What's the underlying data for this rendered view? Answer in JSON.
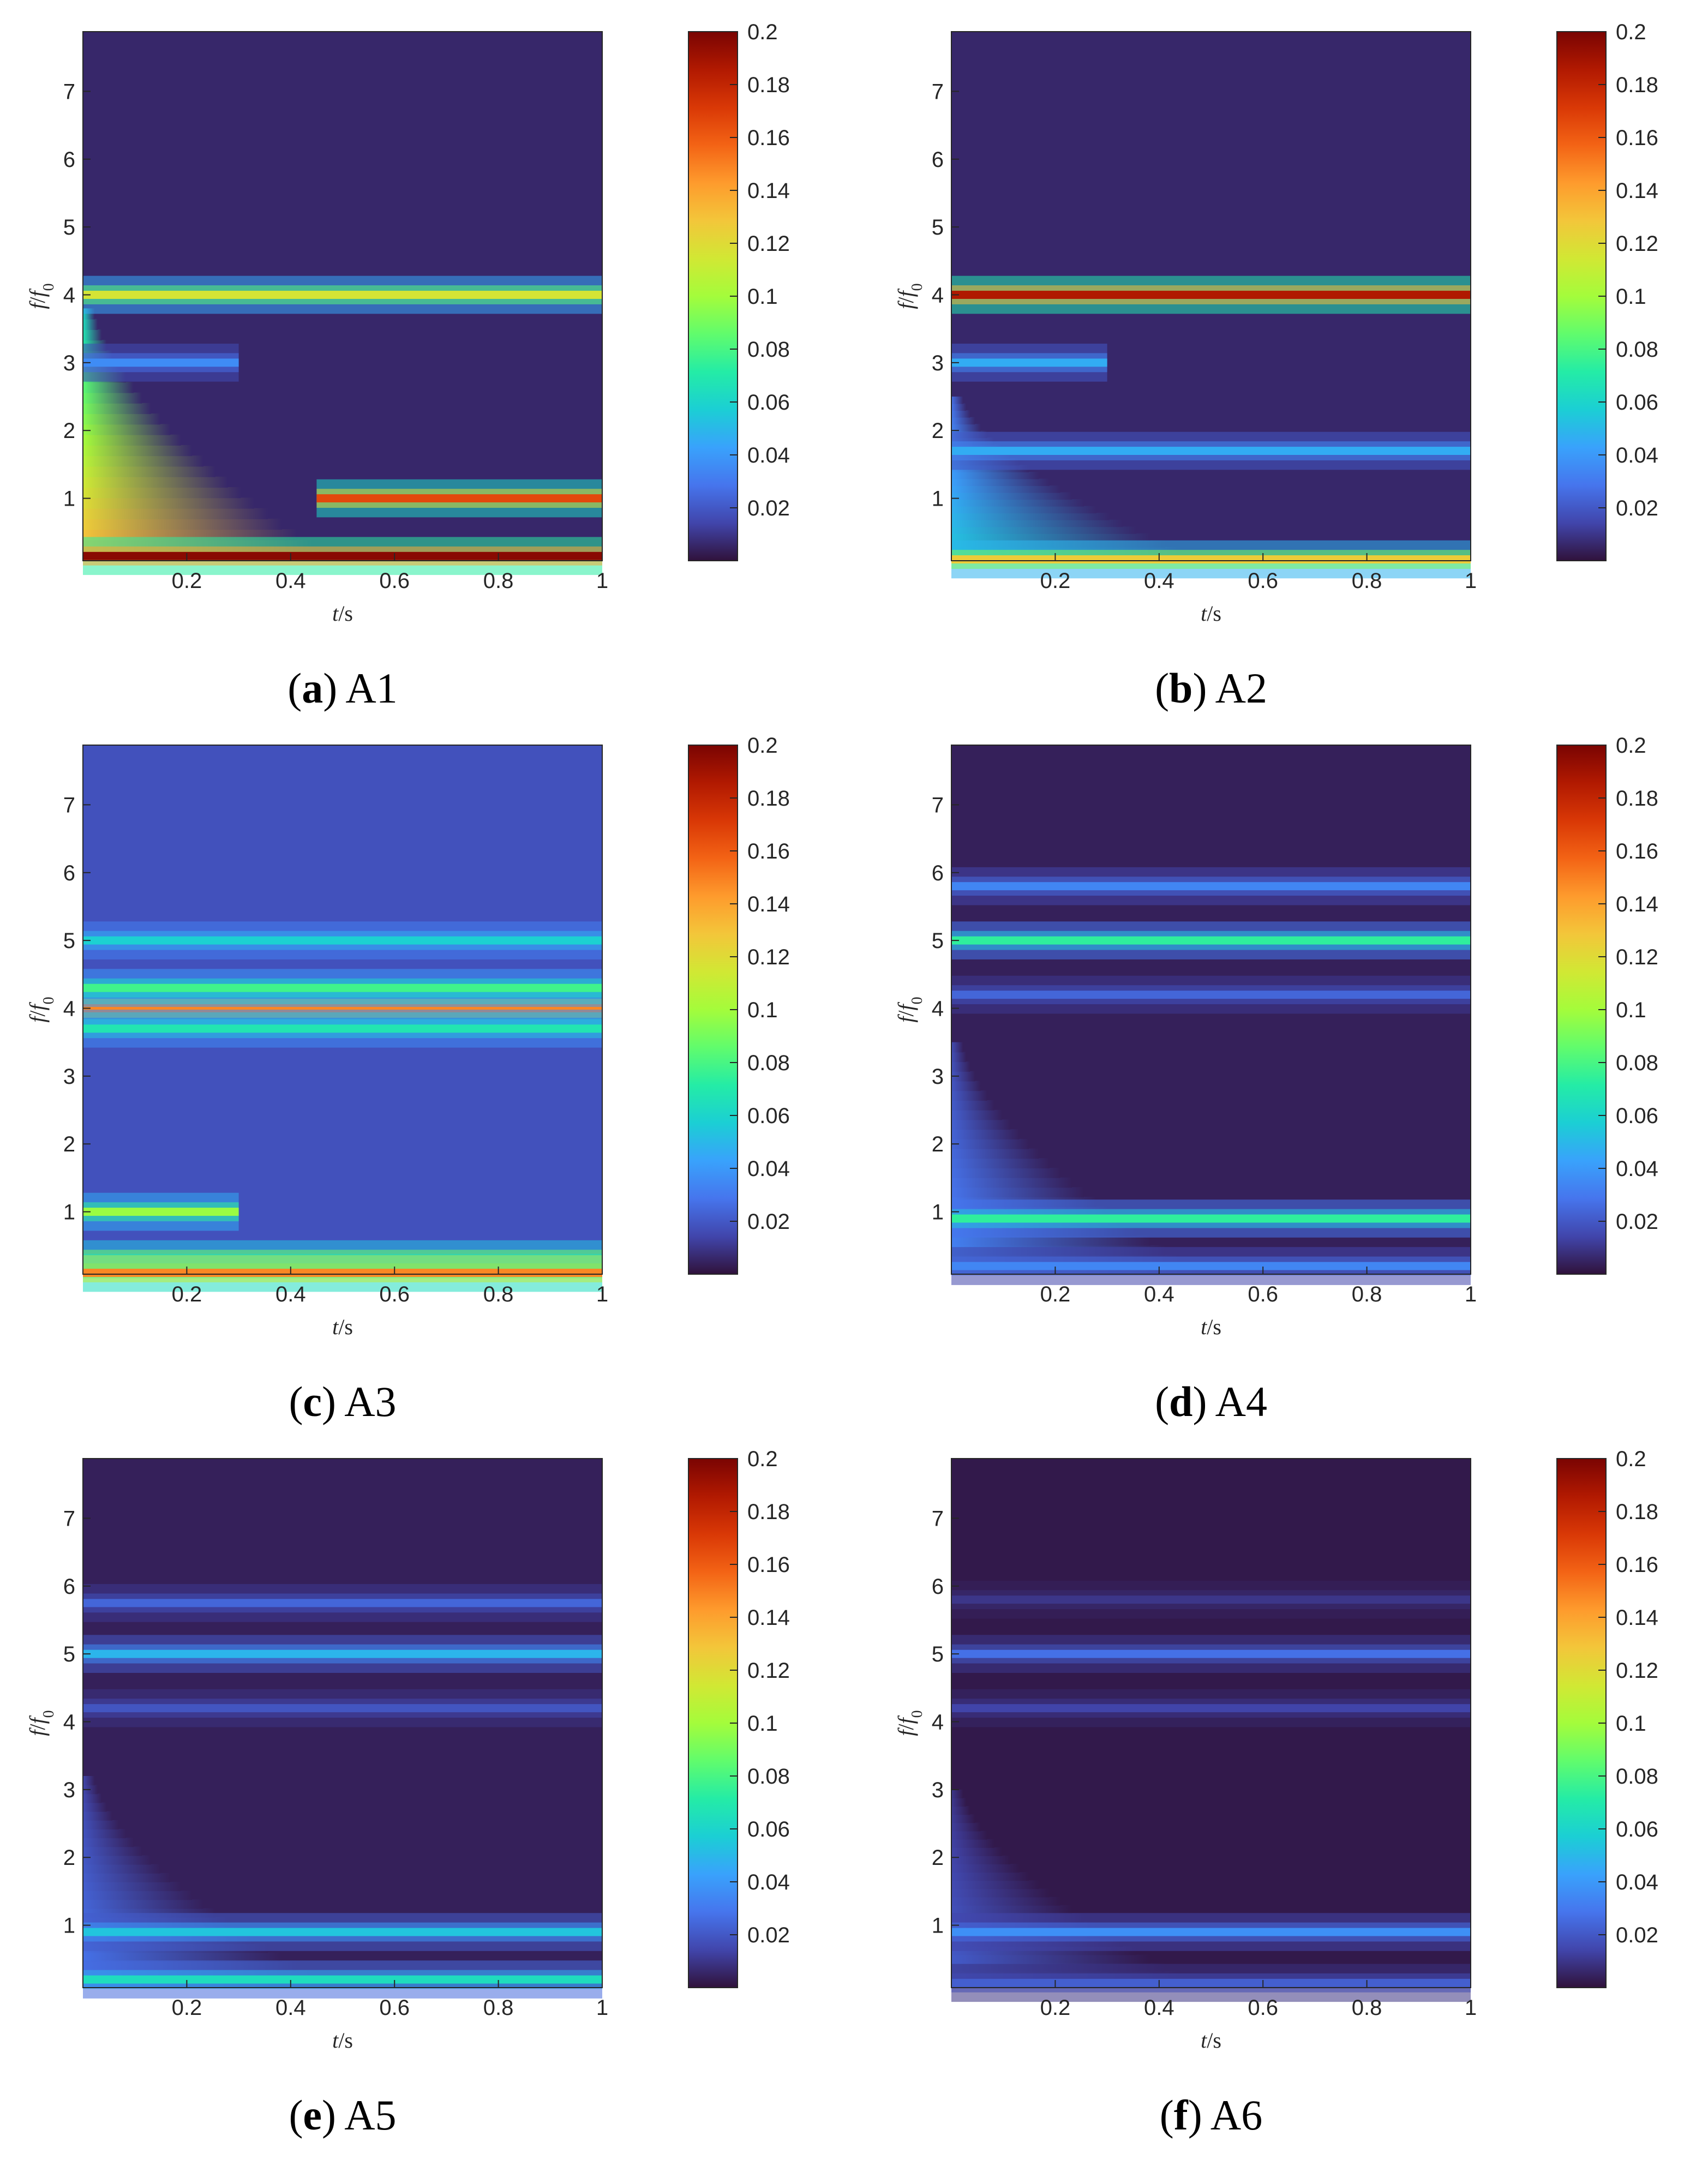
{
  "colors": {
    "colormap": [
      "#30123b",
      "#4145ab",
      "#4675ed",
      "#39a2fc",
      "#1bcfd4",
      "#24eca6",
      "#61fc6c",
      "#a4fc3b",
      "#d1e834",
      "#f3c63a",
      "#fe9b2d",
      "#f36315",
      "#d93806",
      "#b11901",
      "#7a0402"
    ],
    "background": "#2c1a55"
  },
  "chart_data": [
    {
      "type": "heatmap",
      "id": "A1",
      "caption": {
        "label": "a",
        "name": "A1"
      },
      "xlabel": {
        "main": "t",
        "unit": "/s"
      },
      "ylabel": {
        "num": "f",
        "den": "f",
        "den_sub": "0"
      },
      "xlim": [
        0,
        1
      ],
      "ylim": [
        0.08,
        7.88
      ],
      "xticks": [
        0.2,
        0.4,
        0.6,
        0.8,
        1
      ],
      "xtick_labels": [
        "0.2",
        "0.4",
        "0.6",
        "0.8",
        "1"
      ],
      "yticks": [
        1,
        2,
        3,
        4,
        5,
        6,
        7
      ],
      "ytick_labels": [
        "1",
        "2",
        "3",
        "4",
        "5",
        "6",
        "7"
      ],
      "clim": [
        0,
        0.2
      ],
      "cticks": [
        0.02,
        0.04,
        0.06,
        0.08,
        0.1,
        0.12,
        0.14,
        0.16,
        0.18,
        0.2
      ],
      "ctick_labels": [
        "0.02",
        "0.04",
        "0.06",
        "0.08",
        "0.1",
        "0.12",
        "0.14",
        "0.16",
        "0.18",
        "0.2"
      ],
      "background_value": 0.006,
      "bands": [
        {
          "f": 4.0,
          "amplitude": 0.11,
          "t_start": 0,
          "t_end": 1
        },
        {
          "f": 1.0,
          "amplitude": 0.16,
          "t_start": 0.45,
          "t_end": 1
        },
        {
          "f": 3.0,
          "amplitude": 0.03,
          "t_start": 0,
          "t_end": 0.3
        },
        {
          "f": 0.15,
          "amplitude": 0.19,
          "t_start": 0,
          "t_end": 1
        }
      ],
      "transient": {
        "amplitude": 0.13,
        "f_max": 3.8
      }
    },
    {
      "type": "heatmap",
      "id": "A2",
      "caption": {
        "label": "b",
        "name": "A2"
      },
      "xlabel": {
        "main": "t",
        "unit": "/s"
      },
      "ylabel": {
        "num": "f",
        "den": "f",
        "den_sub": "0"
      },
      "xlim": [
        0,
        1
      ],
      "ylim": [
        0.08,
        7.88
      ],
      "xticks": [
        0.2,
        0.4,
        0.6,
        0.8,
        1
      ],
      "xtick_labels": [
        "0.2",
        "0.4",
        "0.6",
        "0.8",
        "1"
      ],
      "yticks": [
        1,
        2,
        3,
        4,
        5,
        6,
        7
      ],
      "ytick_labels": [
        "1",
        "2",
        "3",
        "4",
        "5",
        "6",
        "7"
      ],
      "clim": [
        0,
        0.2
      ],
      "cticks": [
        0.02,
        0.04,
        0.06,
        0.08,
        0.1,
        0.12,
        0.14,
        0.16,
        0.18,
        0.2
      ],
      "ctick_labels": [
        "0.02",
        "0.04",
        "0.06",
        "0.08",
        "0.1",
        "0.12",
        "0.14",
        "0.16",
        "0.18",
        "0.2"
      ],
      "background_value": 0.006,
      "bands": [
        {
          "f": 4.0,
          "amplitude": 0.18,
          "t_start": 0,
          "t_end": 1
        },
        {
          "f": 3.0,
          "amplitude": 0.04,
          "t_start": 0,
          "t_end": 0.3
        },
        {
          "f": 1.7,
          "amplitude": 0.04,
          "t_start": 0,
          "t_end": 1
        },
        {
          "f": 0.1,
          "amplitude": 0.12,
          "t_start": 0,
          "t_end": 1
        }
      ],
      "transient": {
        "amplitude": 0.05,
        "f_max": 2.5
      }
    },
    {
      "type": "heatmap",
      "id": "A3",
      "caption": {
        "label": "c",
        "name": "A3"
      },
      "xlabel": {
        "main": "t",
        "unit": "/s"
      },
      "ylabel": {
        "num": "f",
        "den": "f",
        "den_sub": "0"
      },
      "xlim": [
        0,
        1
      ],
      "ylim": [
        0.08,
        7.88
      ],
      "xticks": [
        0.2,
        0.4,
        0.6,
        0.8,
        1
      ],
      "xtick_labels": [
        "0.2",
        "0.4",
        "0.6",
        "0.8",
        "1"
      ],
      "yticks": [
        1,
        2,
        3,
        4,
        5,
        6,
        7
      ],
      "ytick_labels": [
        "1",
        "2",
        "3",
        "4",
        "5",
        "6",
        "7"
      ],
      "clim": [
        0,
        0.2
      ],
      "cticks": [
        0.02,
        0.04,
        0.06,
        0.08,
        0.1,
        0.12,
        0.14,
        0.16,
        0.18,
        0.2
      ],
      "ctick_labels": [
        "0.02",
        "0.04",
        "0.06",
        "0.08",
        "0.1",
        "0.12",
        "0.14",
        "0.16",
        "0.18",
        "0.2"
      ],
      "background_value": 0.018,
      "bands": [
        {
          "f": 4.0,
          "amplitude": 0.13,
          "t_start": 0,
          "t_end": 1
        },
        {
          "f": 4.3,
          "amplitude": 0.06,
          "t_start": 0,
          "t_end": 1
        },
        {
          "f": 3.7,
          "amplitude": 0.05,
          "t_start": 0,
          "t_end": 1
        },
        {
          "f": 5.0,
          "amplitude": 0.04,
          "t_start": 0,
          "t_end": 1
        },
        {
          "f": 1.0,
          "amplitude": 0.08,
          "t_start": 0,
          "t_end": 0.3
        },
        {
          "f": 0.3,
          "amplitude": 0.1,
          "t_start": 0,
          "t_end": 1
        },
        {
          "f": 0.1,
          "amplitude": 0.13,
          "t_start": 0,
          "t_end": 1
        }
      ],
      "transient": {
        "amplitude": 0.0,
        "f_max": 1.0
      }
    },
    {
      "type": "heatmap",
      "id": "A4",
      "caption": {
        "label": "d",
        "name": "A4"
      },
      "xlabel": {
        "main": "t",
        "unit": "/s"
      },
      "ylabel": {
        "num": "f",
        "den": "f",
        "den_sub": "0"
      },
      "xlim": [
        0,
        1
      ],
      "ylim": [
        0.08,
        7.88
      ],
      "xticks": [
        0.2,
        0.4,
        0.6,
        0.8,
        1
      ],
      "xtick_labels": [
        "0.2",
        "0.4",
        "0.6",
        "0.8",
        "1"
      ],
      "yticks": [
        1,
        2,
        3,
        4,
        5,
        6,
        7
      ],
      "ytick_labels": [
        "1",
        "2",
        "3",
        "4",
        "5",
        "6",
        "7"
      ],
      "clim": [
        0,
        0.2
      ],
      "cticks": [
        0.02,
        0.04,
        0.06,
        0.08,
        0.1,
        0.12,
        0.14,
        0.16,
        0.18,
        0.2
      ],
      "ctick_labels": [
        "0.02",
        "0.04",
        "0.06",
        "0.08",
        "0.1",
        "0.12",
        "0.14",
        "0.16",
        "0.18",
        "0.2"
      ],
      "background_value": 0.004,
      "bands": [
        {
          "f": 5.0,
          "amplitude": 0.07,
          "t_start": 0,
          "t_end": 1
        },
        {
          "f": 5.8,
          "amplitude": 0.03,
          "t_start": 0,
          "t_end": 1
        },
        {
          "f": 4.2,
          "amplitude": 0.02,
          "t_start": 0,
          "t_end": 1
        },
        {
          "f": 0.9,
          "amplitude": 0.07,
          "t_start": 0,
          "t_end": 1
        },
        {
          "f": 0.2,
          "amplitude": 0.03,
          "t_start": 0,
          "t_end": 1
        }
      ],
      "transient": {
        "amplitude": 0.03,
        "f_max": 3.5
      }
    },
    {
      "type": "heatmap",
      "id": "A5",
      "caption": {
        "label": "e",
        "name": "A5"
      },
      "xlabel": {
        "main": "t",
        "unit": "/s"
      },
      "ylabel": {
        "num": "f",
        "den": "f",
        "den_sub": "0"
      },
      "xlim": [
        0,
        1
      ],
      "ylim": [
        0.08,
        7.88
      ],
      "xticks": [
        0.2,
        0.4,
        0.6,
        0.8,
        1
      ],
      "xtick_labels": [
        "0.2",
        "0.4",
        "0.6",
        "0.8",
        "1"
      ],
      "yticks": [
        1,
        2,
        3,
        4,
        5,
        6,
        7
      ],
      "ytick_labels": [
        "1",
        "2",
        "3",
        "4",
        "5",
        "6",
        "7"
      ],
      "clim": [
        0,
        0.2
      ],
      "cticks": [
        0.02,
        0.04,
        0.06,
        0.08,
        0.1,
        0.12,
        0.14,
        0.16,
        0.18,
        0.2
      ],
      "ctick_labels": [
        "0.02",
        "0.04",
        "0.06",
        "0.08",
        "0.1",
        "0.12",
        "0.14",
        "0.16",
        "0.18",
        "0.2"
      ],
      "background_value": 0.004,
      "bands": [
        {
          "f": 5.0,
          "amplitude": 0.045,
          "t_start": 0,
          "t_end": 1
        },
        {
          "f": 5.75,
          "amplitude": 0.02,
          "t_start": 0,
          "t_end": 1
        },
        {
          "f": 4.2,
          "amplitude": 0.015,
          "t_start": 0,
          "t_end": 1
        },
        {
          "f": 0.9,
          "amplitude": 0.05,
          "t_start": 0,
          "t_end": 1
        },
        {
          "f": 0.2,
          "amplitude": 0.06,
          "t_start": 0,
          "t_end": 1
        }
      ],
      "transient": {
        "amplitude": 0.025,
        "f_max": 3.2
      }
    },
    {
      "type": "heatmap",
      "id": "A6",
      "caption": {
        "label": "f",
        "name": "A6"
      },
      "xlabel": {
        "main": "t",
        "unit": "/s"
      },
      "ylabel": {
        "num": "f",
        "den": "f",
        "den_sub": "0"
      },
      "xlim": [
        0,
        1
      ],
      "ylim": [
        0.08,
        7.88
      ],
      "xticks": [
        0.2,
        0.4,
        0.6,
        0.8,
        1
      ],
      "xtick_labels": [
        "0.2",
        "0.4",
        "0.6",
        "0.8",
        "1"
      ],
      "yticks": [
        1,
        2,
        3,
        4,
        5,
        6,
        7
      ],
      "ytick_labels": [
        "1",
        "2",
        "3",
        "4",
        "5",
        "6",
        "7"
      ],
      "clim": [
        0,
        0.2
      ],
      "cticks": [
        0.02,
        0.04,
        0.06,
        0.08,
        0.1,
        0.12,
        0.14,
        0.16,
        0.18,
        0.2
      ],
      "ctick_labels": [
        "0.02",
        "0.04",
        "0.06",
        "0.08",
        "0.1",
        "0.12",
        "0.14",
        "0.16",
        "0.18",
        "0.2"
      ],
      "background_value": 0.002,
      "bands": [
        {
          "f": 5.0,
          "amplitude": 0.025,
          "t_start": 0,
          "t_end": 1
        },
        {
          "f": 4.2,
          "amplitude": 0.012,
          "t_start": 0,
          "t_end": 1
        },
        {
          "f": 5.8,
          "amplitude": 0.008,
          "t_start": 0,
          "t_end": 1
        },
        {
          "f": 0.9,
          "amplitude": 0.035,
          "t_start": 0,
          "t_end": 1
        },
        {
          "f": 0.15,
          "amplitude": 0.02,
          "t_start": 0,
          "t_end": 1
        }
      ],
      "transient": {
        "amplitude": 0.02,
        "f_max": 3.0
      }
    }
  ]
}
